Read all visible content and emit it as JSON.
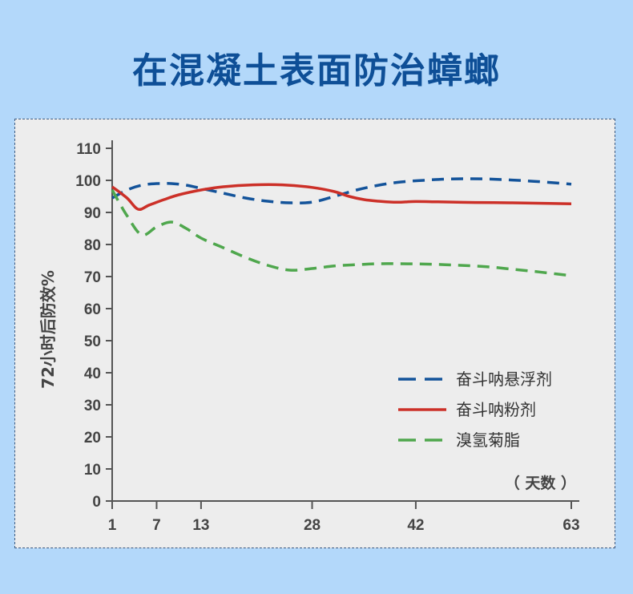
{
  "title": "在混凝土表面防治蟑螂",
  "colors": {
    "background": "#b3d8fa",
    "title": "#0e4f97",
    "panel": "#ededed",
    "axis": "#555555",
    "tick_label": "#444444"
  },
  "chart_data": {
    "type": "line",
    "title": "",
    "xlabel": "（ 天数 ）",
    "ylabel": "72小时后防效%",
    "ylim": [
      0,
      110
    ],
    "yticks": [
      0,
      10,
      20,
      30,
      40,
      50,
      60,
      70,
      80,
      90,
      100,
      110
    ],
    "xticks": [
      1,
      7,
      13,
      28,
      42,
      63
    ],
    "xlim": [
      1,
      63
    ],
    "legend_position": "right-middle",
    "grid": false,
    "series": [
      {
        "name": "奋斗呐悬浮剂",
        "color": "#13539a",
        "dash": "dashed",
        "x": [
          1,
          3,
          5,
          7,
          9,
          11,
          13,
          16,
          19,
          22,
          25,
          28,
          31,
          34,
          37,
          40,
          43,
          46,
          49,
          52,
          55,
          58,
          61,
          63
        ],
        "y": [
          94.5,
          97,
          98.5,
          99,
          99,
          98.5,
          97.5,
          96,
          94.5,
          93.5,
          93,
          93.2,
          95,
          97,
          98.5,
          99.5,
          100,
          100.4,
          100.5,
          100.4,
          100.1,
          99.7,
          99.2,
          98.8
        ]
      },
      {
        "name": "奋斗呐粉剂",
        "color": "#cc3028",
        "dash": "solid",
        "x": [
          1,
          3,
          4.5,
          6,
          8,
          10,
          13,
          16,
          20,
          24,
          28,
          31,
          33,
          35,
          37,
          39,
          40,
          42,
          45,
          50,
          55,
          60,
          63
        ],
        "y": [
          98,
          94.5,
          91,
          92.3,
          94,
          95.5,
          97,
          98,
          98.6,
          98.6,
          97.8,
          96.5,
          95,
          94,
          93.5,
          93.2,
          93.2,
          93.4,
          93.3,
          93.1,
          93,
          92.8,
          92.7
        ]
      },
      {
        "name": "溴氢菊脂",
        "color": "#4fa74d",
        "dash": "dashed",
        "x": [
          1,
          3,
          5,
          7,
          9,
          11,
          13,
          16,
          19,
          22,
          25,
          28,
          31,
          34,
          37,
          40,
          43,
          46,
          49,
          52,
          55,
          58,
          61,
          63
        ],
        "y": [
          97,
          89,
          83,
          85.5,
          87,
          85,
          82,
          79,
          76,
          73.5,
          72,
          72.5,
          73.3,
          73.7,
          74,
          74,
          73.9,
          73.7,
          73.4,
          73,
          72.3,
          71.6,
          70.8,
          70.3
        ]
      }
    ]
  }
}
